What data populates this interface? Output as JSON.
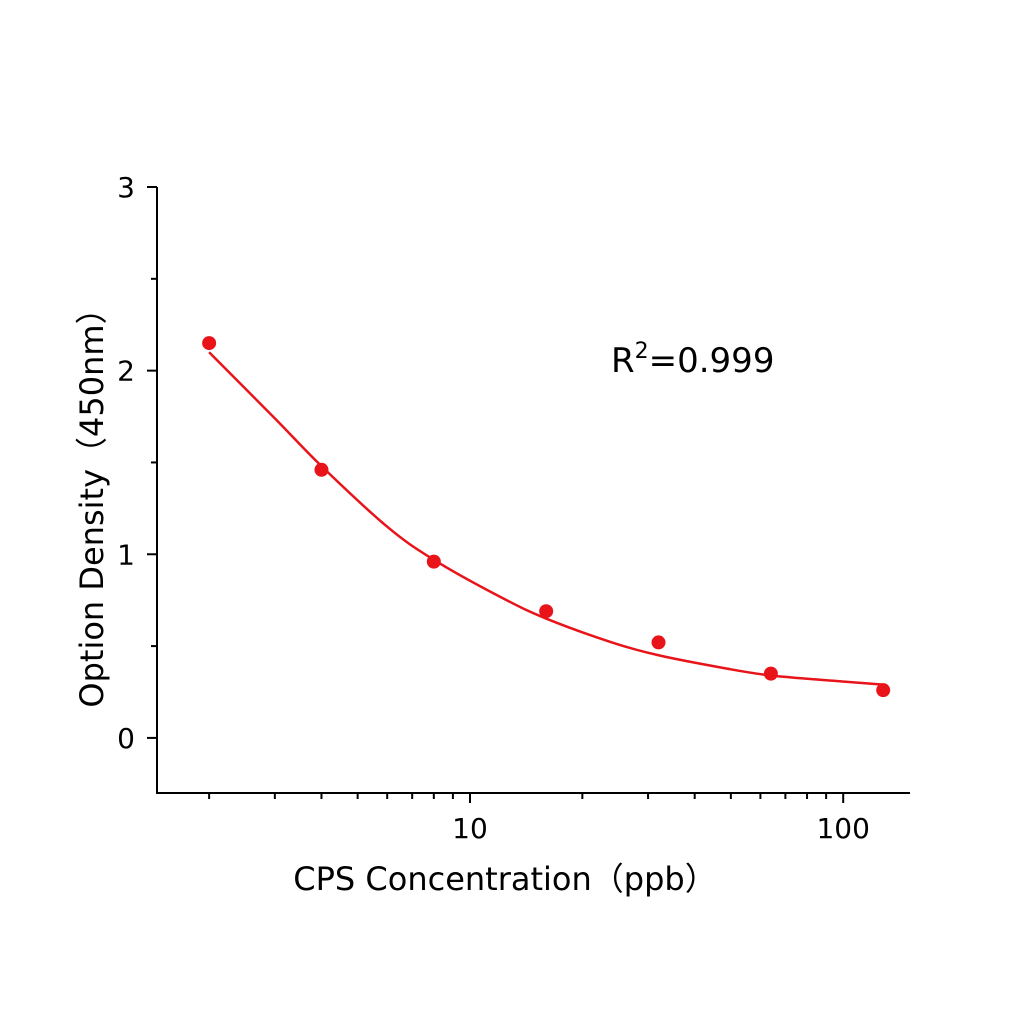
{
  "chart_data": {
    "type": "scatter",
    "title": "",
    "xlabel": "CPS  Concentration（ppb）",
    "ylabel": "Option Density（450nm）",
    "x_scale": "log",
    "xlim": [
      1.45,
      151
    ],
    "ylim": [
      -0.3,
      3
    ],
    "x_major_ticks": [
      10,
      100
    ],
    "x_tick_labels": [
      "10",
      "100"
    ],
    "x_minor_ticks": [
      2,
      3,
      4,
      5,
      6,
      7,
      8,
      9,
      20,
      30,
      40,
      50,
      60,
      70,
      80,
      90
    ],
    "y_major_ticks": [
      0,
      1,
      2,
      3
    ],
    "y_tick_labels": [
      "0",
      "1",
      "2",
      "3"
    ],
    "y_minor_ticks": [
      0.5,
      1.5,
      2.5
    ],
    "grid": false,
    "series": [
      {
        "type": "scatter",
        "x": [
          2,
          4,
          8,
          16,
          32,
          64,
          128
        ],
        "y": [
          2.15,
          1.46,
          0.96,
          0.69,
          0.52,
          0.35,
          0.26
        ],
        "color": "#e8141a"
      },
      {
        "type": "line",
        "x": [
          2,
          3,
          4,
          6,
          8,
          12,
          16,
          24,
          32,
          48,
          64,
          96,
          128
        ],
        "y": [
          2.1,
          1.74,
          1.48,
          1.15,
          0.97,
          0.77,
          0.65,
          0.52,
          0.45,
          0.38,
          0.34,
          0.31,
          0.29
        ],
        "color": "#e8141a"
      }
    ],
    "annotation": {
      "text": "R",
      "superscript": "2",
      "suffix": "=0.999"
    }
  }
}
